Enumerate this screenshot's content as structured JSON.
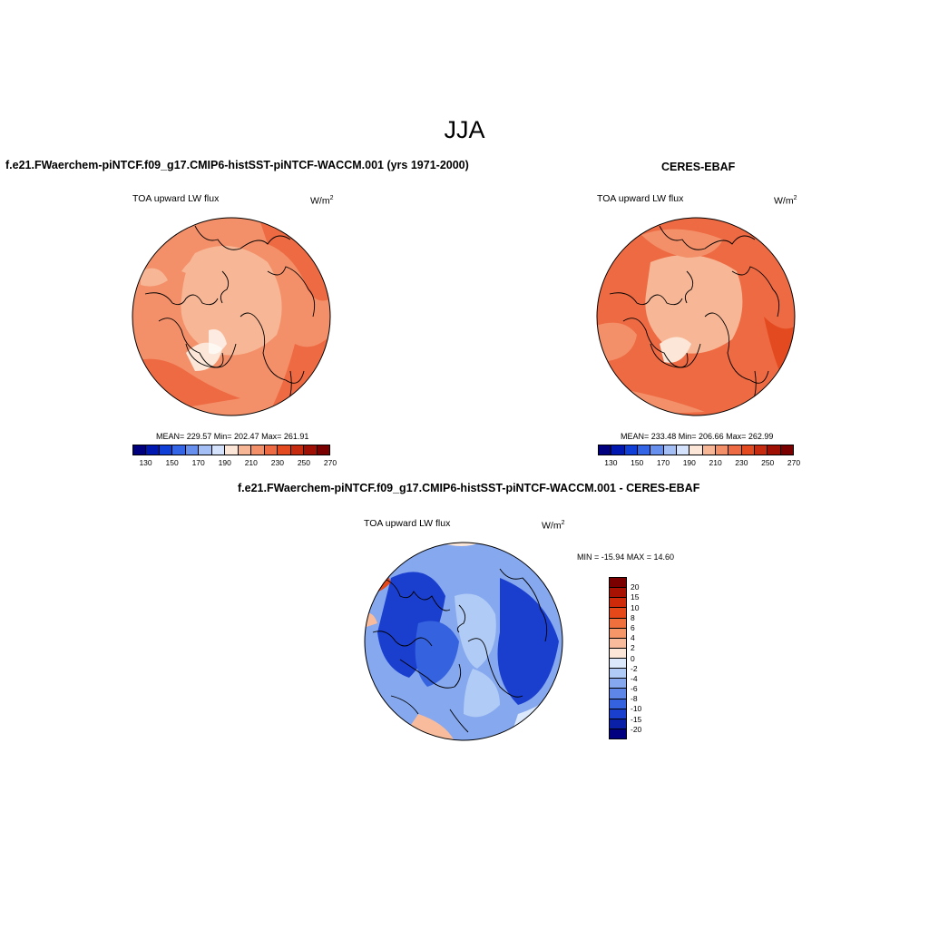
{
  "title": "JJA",
  "panels": [
    {
      "title": "f.e21.FWaerchem-piNTCF.f09_g17.CMIP6-histSST-piNTCF-WACCM.001 (yrs 1971-2000)",
      "variable": "TOA upward LW flux",
      "units_base": "W/m",
      "units_exp": "2",
      "stats": "MEAN= 229.57  Min= 202.47  Max= 261.91",
      "colorbar_ticks": [
        "130",
        "150",
        "170",
        "190",
        "210",
        "230",
        "250",
        "270"
      ]
    },
    {
      "title": "CERES-EBAF",
      "variable": "TOA upward LW flux",
      "units_base": "W/m",
      "units_exp": "2",
      "stats": "MEAN= 233.48  Min= 206.66  Max= 262.99",
      "colorbar_ticks": [
        "130",
        "150",
        "170",
        "190",
        "210",
        "230",
        "250",
        "270"
      ]
    },
    {
      "title": "f.e21.FWaerchem-piNTCF.f09_g17.CMIP6-histSST-piNTCF-WACCM.001 - CERES-EBAF",
      "variable": "TOA upward LW flux",
      "units_base": "W/m",
      "units_exp": "2",
      "stats": "MIN = -15.94 MAX =  14.60",
      "colorbar_ticks": [
        "20",
        "15",
        "10",
        "8",
        "6",
        "4",
        "2",
        "0",
        "-2",
        "-4",
        "-6",
        "-8",
        "-10",
        "-15",
        "-20"
      ]
    }
  ],
  "colors": {
    "abs_scale": [
      "#00007f",
      "#0018b0",
      "#0f3fd6",
      "#3465e6",
      "#6790ee",
      "#a3bff5",
      "#d4e3fb",
      "#fce6d8",
      "#f7b796",
      "#f39069",
      "#ee6a42",
      "#e44a1f",
      "#c62b10",
      "#a00f03",
      "#7a0000"
    ],
    "diff_scale": [
      "#7a0000",
      "#a81202",
      "#cf2b0a",
      "#e6481a",
      "#f0703d",
      "#f59668",
      "#f8bb9c",
      "#fce6d8",
      "#dce8fb",
      "#b0cbf5",
      "#86a8ee",
      "#5d86e8",
      "#3563e0",
      "#1a3fcf",
      "#0a20a6",
      "#000080"
    ]
  }
}
